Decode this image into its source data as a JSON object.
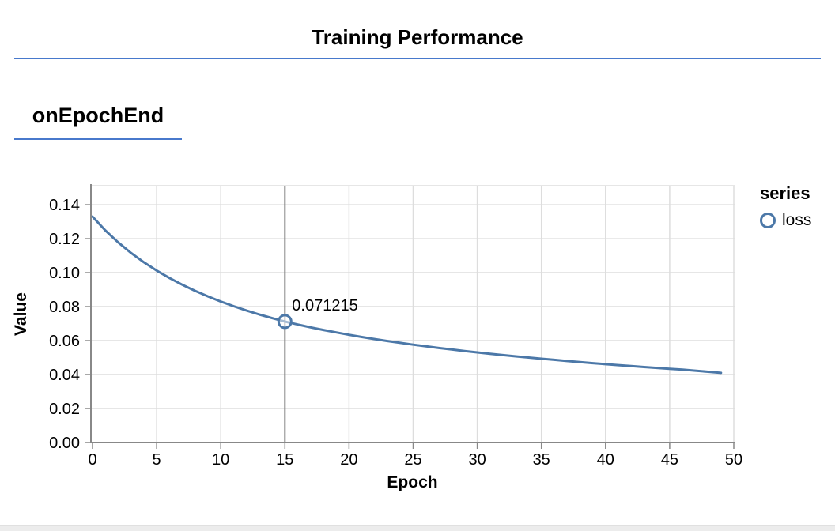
{
  "page": {
    "title": "Training Performance",
    "section_heading": "onEpochEnd"
  },
  "legend": {
    "title": "series",
    "items": [
      {
        "label": "loss",
        "marker": "circle-outline-icon",
        "color": "#4c78a8"
      }
    ]
  },
  "colors": {
    "accent_blue": "#4879cc",
    "line": "#4c78a8",
    "grid": "#dddddd",
    "axis": "#888888",
    "hover_rule": "#888888"
  },
  "chart_data": {
    "type": "line",
    "title": "",
    "xlabel": "Epoch",
    "ylabel": "Value",
    "xlim": [
      0,
      50
    ],
    "ylim": [
      0,
      0.1512
    ],
    "grid": true,
    "legend_position": "right",
    "x_ticks": {
      "values": [
        0,
        5,
        10,
        15,
        20,
        25,
        30,
        35,
        40,
        45,
        50
      ],
      "labels": [
        "0",
        "5",
        "10",
        "15",
        "20",
        "25",
        "30",
        "35",
        "40",
        "45",
        "50"
      ]
    },
    "y_ticks": {
      "values": [
        0,
        0.02,
        0.04,
        0.06,
        0.08,
        0.1,
        0.12,
        0.14
      ],
      "labels": [
        "0.00",
        "0.02",
        "0.04",
        "0.06",
        "0.08",
        "0.10",
        "0.12",
        "0.14"
      ]
    },
    "series": [
      {
        "name": "loss",
        "color": "#4c78a8",
        "x": [
          0,
          1,
          2,
          3,
          4,
          5,
          6,
          7,
          8,
          9,
          10,
          11,
          12,
          13,
          14,
          15,
          16,
          17,
          18,
          19,
          20,
          21,
          22,
          23,
          24,
          25,
          26,
          27,
          28,
          29,
          30,
          31,
          32,
          33,
          34,
          35,
          36,
          37,
          38,
          39,
          40,
          41,
          42,
          43,
          44,
          45,
          46,
          47,
          48,
          49
        ],
        "values": [
          0.133,
          0.12489,
          0.11783,
          0.11163,
          0.10614,
          0.10124,
          0.09685,
          0.09289,
          0.08929,
          0.08601,
          0.08302,
          0.08027,
          0.07773,
          0.07539,
          0.07322,
          0.071215,
          0.06945,
          0.0678,
          0.06625,
          0.06479,
          0.06342,
          0.06213,
          0.06091,
          0.05975,
          0.05865,
          0.0576,
          0.0566,
          0.05565,
          0.05474,
          0.05387,
          0.05304,
          0.05224,
          0.05147,
          0.05073,
          0.05001,
          0.04932,
          0.04864,
          0.04798,
          0.04734,
          0.04672,
          0.04612,
          0.04554,
          0.04498,
          0.04444,
          0.04392,
          0.04341,
          0.04288,
          0.04231,
          0.04166,
          0.041
        ]
      }
    ],
    "hover": {
      "series": "loss",
      "x": 15,
      "value": 0.071215,
      "label": "0.071215"
    }
  }
}
